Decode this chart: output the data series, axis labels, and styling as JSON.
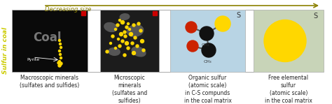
{
  "arrow_text": "Decreasing size",
  "arrow_color": "#8B8000",
  "left_label": "Sulfur in coal",
  "left_label_color": "#CCCC00",
  "panel1_bg": "#0a0a0a",
  "panel2_bg": "#1c1c1c",
  "panel3_bg": "#b8d4e4",
  "panel4_bg": "#c8d4b8",
  "panel1_text": "Coal",
  "panel1_sub": "Pyrite",
  "panel1_caption": "Macroscopic minerals\n(sulfates and sulfides)",
  "panel2_caption": "Microscopic\nminerals\n(sulfates and\nsulfides)",
  "panel3_caption": "Organic sulfur\n(atomic scale)\nin C-S compunds\nin the coal matrix",
  "panel4_caption": "Free elemental\nsulfur\n(atomic scale)\nin the coal matrix",
  "yellow_color": "#FFD700",
  "red_color": "#CC2200",
  "dark_color": "#111111",
  "red_marker_color": "#CC0000",
  "caption_color": "#222222",
  "figsize": [
    4.74,
    1.49
  ],
  "dpi": 100
}
